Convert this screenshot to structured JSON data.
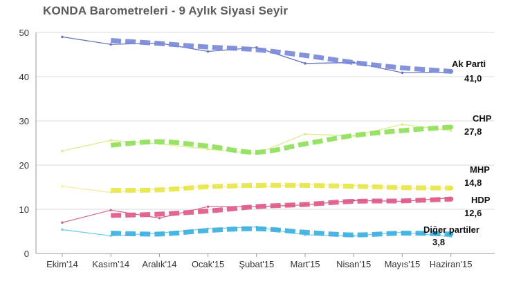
{
  "chart_data": {
    "type": "line",
    "title": "KONDA Barometreleri - 9 Aylık Siyasi Seyir",
    "xlabel": "",
    "ylabel": "",
    "ylim": [
      0,
      50
    ],
    "yticks": [
      0,
      10,
      20,
      30,
      40,
      50
    ],
    "grid": true,
    "categories": [
      "Ekim'14",
      "Kasım'14",
      "Aralık'14",
      "Ocak'15",
      "Şubat'15",
      "Mart'15",
      "Nisan'15",
      "Mayıs'15",
      "Haziran'15"
    ],
    "series": [
      {
        "name": "Ak Parti",
        "final_label": "41,0",
        "color": "#6673c4",
        "trend_color": "#7a89d9",
        "values": [
          49.0,
          47.3,
          47.6,
          45.7,
          46.6,
          43.0,
          43.2,
          40.9,
          41.0
        ],
        "trend": [
          null,
          48.2,
          47.5,
          46.7,
          46.1,
          44.8,
          43.2,
          42.0,
          41.2
        ]
      },
      {
        "name": "CHP",
        "final_label": "27,8",
        "color": "#d7ee8a",
        "trend_color": "#8fe05a",
        "values": [
          23.2,
          25.6,
          24.8,
          23.6,
          22.6,
          27.0,
          26.6,
          29.2,
          27.8
        ],
        "trend": [
          null,
          24.5,
          25.3,
          24.3,
          22.9,
          24.8,
          26.7,
          27.8,
          28.6
        ]
      },
      {
        "name": "MHP",
        "final_label": "14,8",
        "color": "#f2ef9a",
        "trend_color": "#e6e64a",
        "values": [
          15.2,
          13.8,
          14.6,
          15.2,
          15.0,
          15.6,
          15.4,
          14.8,
          14.8
        ],
        "trend": [
          null,
          14.3,
          14.4,
          15.1,
          15.4,
          15.4,
          15.2,
          14.9,
          14.8
        ]
      },
      {
        "name": "HDP",
        "final_label": "12,6",
        "color": "#d26b94",
        "trend_color": "#e05a8a",
        "values": [
          7.0,
          9.8,
          8.0,
          10.6,
          10.6,
          11.0,
          12.0,
          11.8,
          12.6
        ],
        "trend": [
          null,
          8.6,
          8.9,
          9.6,
          10.6,
          11.1,
          11.8,
          11.9,
          12.3
        ]
      },
      {
        "name": "Diğer partiler",
        "final_label": "3,8",
        "color": "#7ad0ec",
        "trend_color": "#3bb0de",
        "values": [
          5.4,
          4.0,
          4.6,
          5.6,
          6.0,
          4.2,
          4.0,
          4.8,
          3.8
        ],
        "trend": [
          null,
          4.6,
          4.4,
          5.2,
          5.6,
          4.8,
          4.2,
          4.6,
          4.4
        ]
      }
    ]
  }
}
